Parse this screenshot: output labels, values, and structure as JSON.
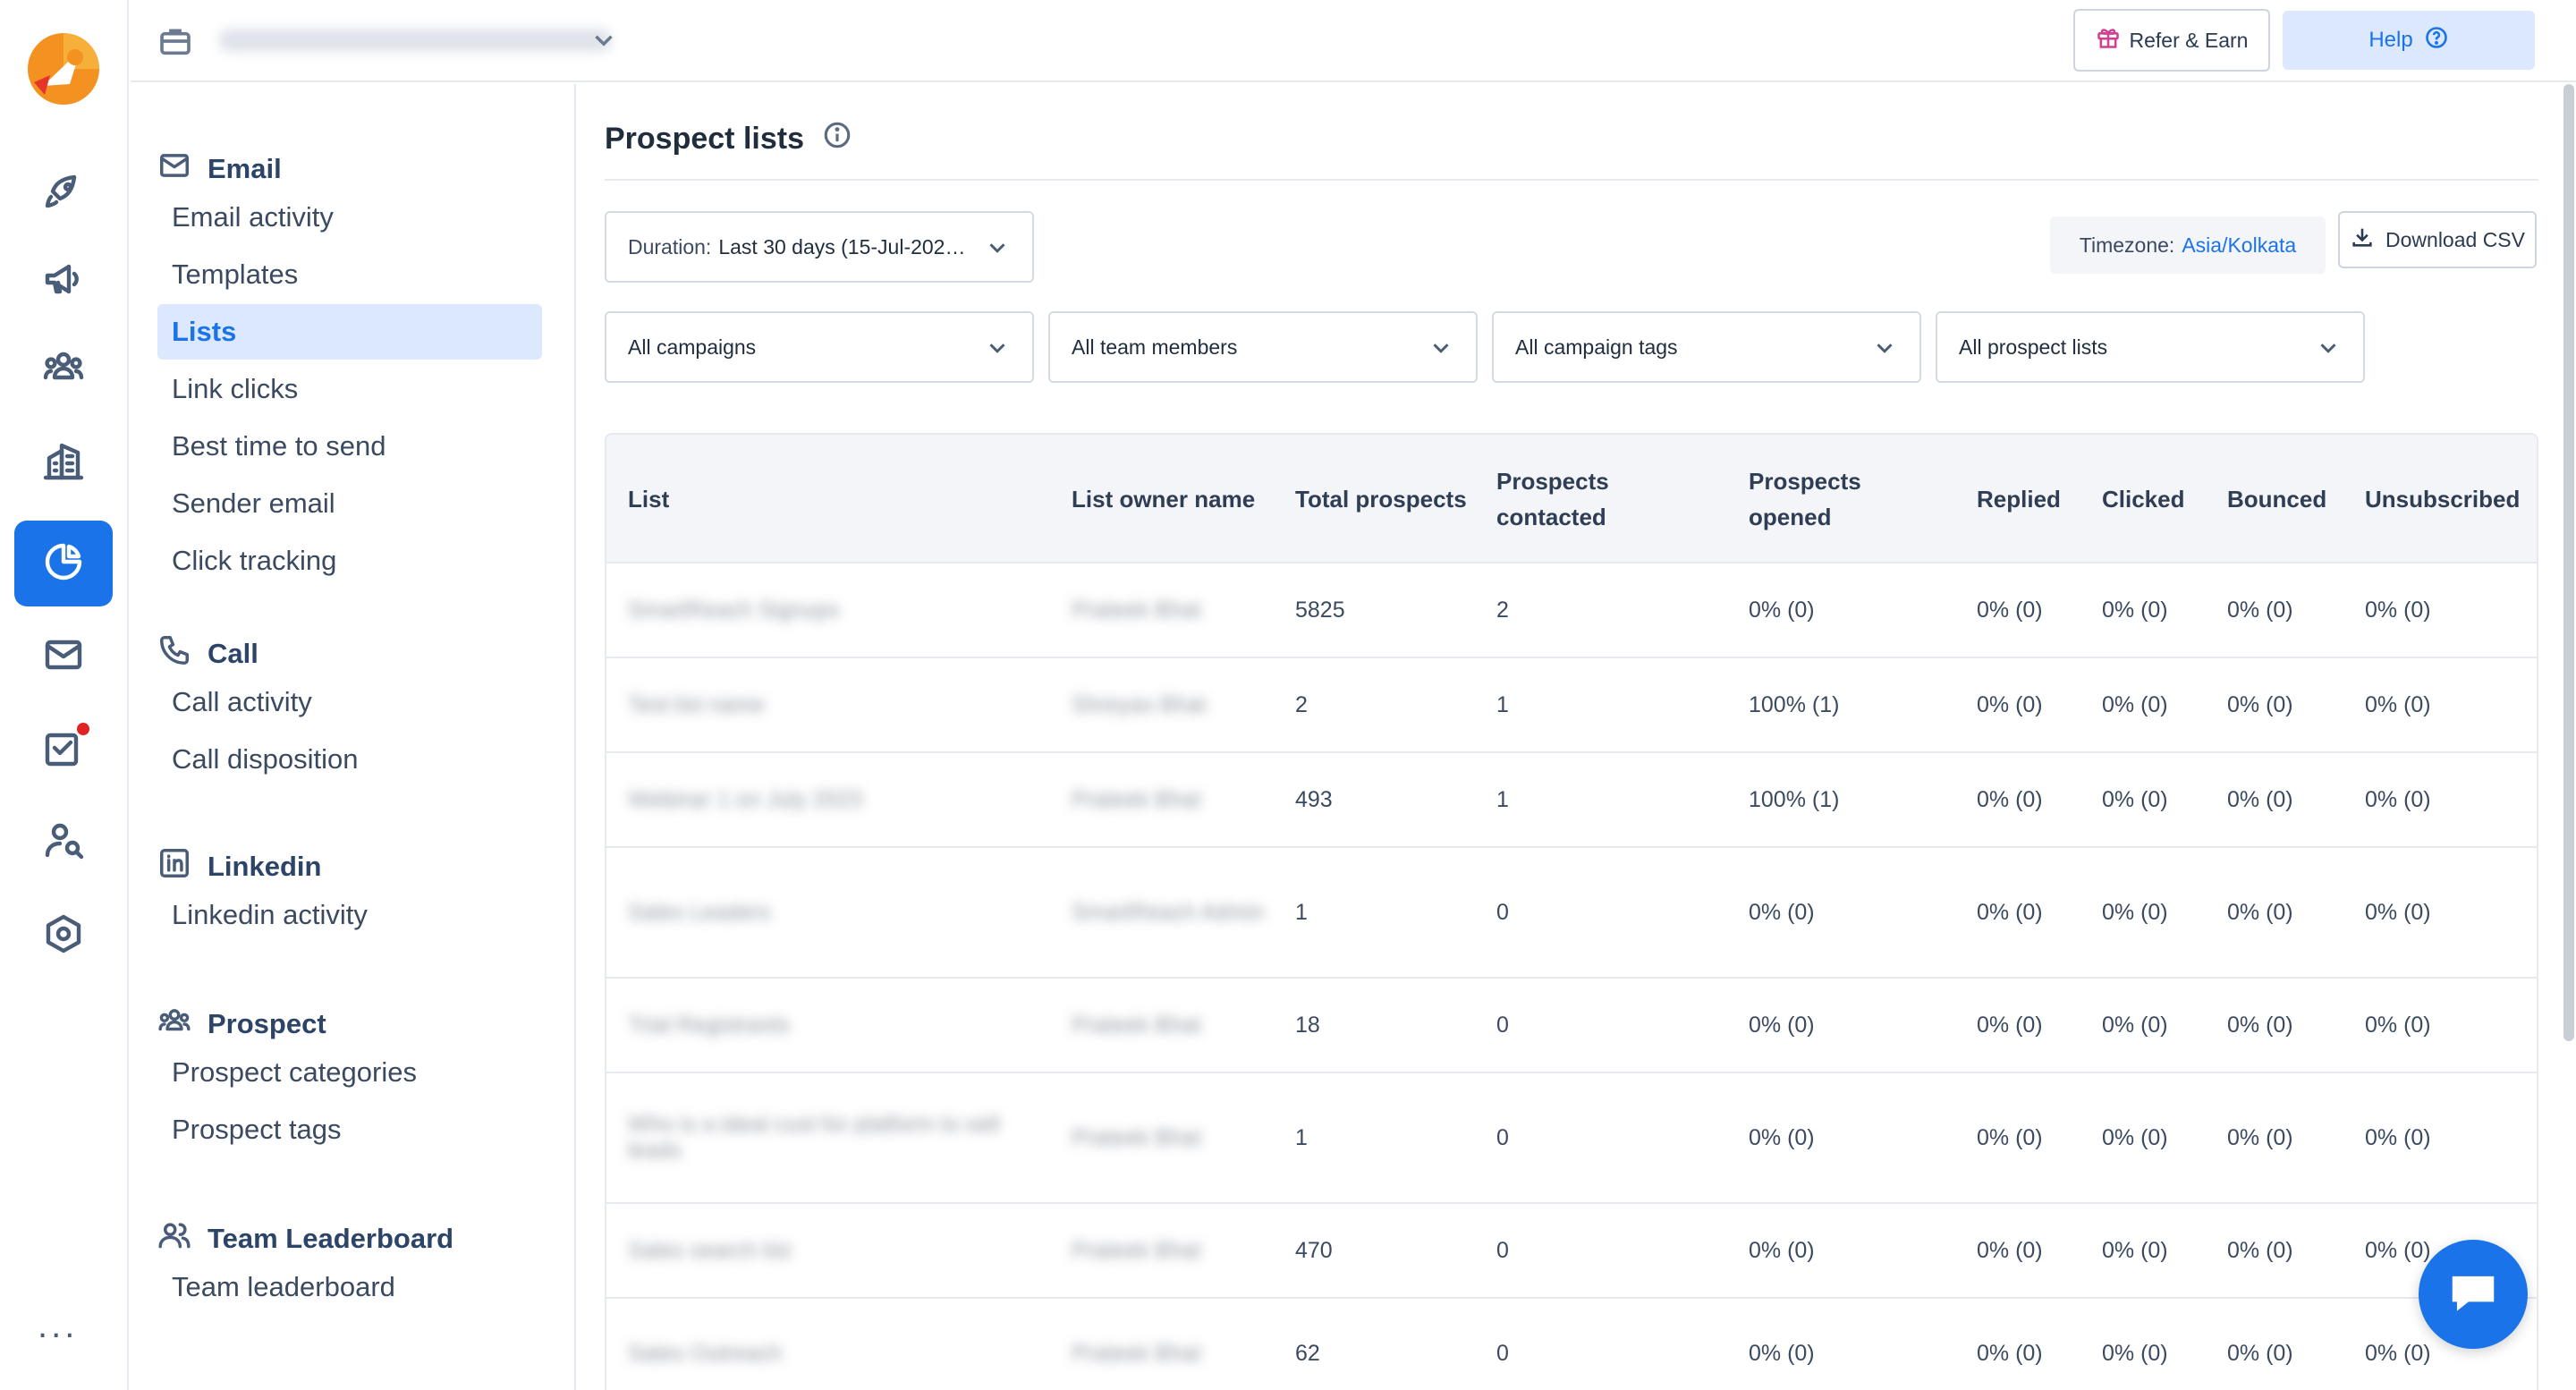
{
  "topbar": {
    "workspace_name": "",
    "refer_label": "Refer & Earn",
    "help_label": "Help"
  },
  "rail": {
    "items": [
      "rocket-icon",
      "megaphone-icon",
      "team-icon",
      "building-icon",
      "reports-icon",
      "mail-icon",
      "task-icon",
      "prospect-search-icon",
      "settings-icon"
    ],
    "active": "reports-icon",
    "more_label": "..."
  },
  "subnav": {
    "email": {
      "title": "Email",
      "items": [
        "Email activity",
        "Templates",
        "Lists",
        "Link clicks",
        "Best time to send",
        "Sender email",
        "Click tracking"
      ],
      "active": "Lists"
    },
    "call": {
      "title": "Call",
      "items": [
        "Call activity",
        "Call disposition"
      ]
    },
    "linkedin": {
      "title": "Linkedin",
      "items": [
        "Linkedin activity"
      ]
    },
    "prospect": {
      "title": "Prospect",
      "items": [
        "Prospect categories",
        "Prospect tags"
      ]
    },
    "team": {
      "title": "Team Leaderboard",
      "items": [
        "Team leaderboard"
      ]
    }
  },
  "page": {
    "title": "Prospect lists",
    "duration_label": "Duration:",
    "duration_value": "Last 30 days (15-Jul-202…",
    "timezone_label": "Timezone:",
    "timezone_value": "Asia/Kolkata",
    "download_label": "Download CSV",
    "filters": [
      "All campaigns",
      "All team members",
      "All campaign tags",
      "All prospect lists"
    ]
  },
  "table": {
    "columns": [
      "List",
      "List owner name",
      "Total prospects",
      "Prospects contacted",
      "Prospects opened",
      "Replied",
      "Clicked",
      "Bounced",
      "Unsubscribed"
    ],
    "rows": [
      {
        "list": "SmartReach Signups",
        "owner": "Prateek Bhat",
        "total": "5825",
        "contacted": "2",
        "opened": "0% (0)",
        "replied": "0% (0)",
        "clicked": "0% (0)",
        "bounced": "0% (0)",
        "unsub": "0% (0)"
      },
      {
        "list": "Test list name",
        "owner": "Shreyas Bhat",
        "total": "2",
        "contacted": "1",
        "opened": "100% (1)",
        "replied": "0% (0)",
        "clicked": "0% (0)",
        "bounced": "0% (0)",
        "unsub": "0% (0)"
      },
      {
        "list": "Webinar 1 on July 2023",
        "owner": "Prateek Bhat",
        "total": "493",
        "contacted": "1",
        "opened": "100% (1)",
        "replied": "0% (0)",
        "clicked": "0% (0)",
        "bounced": "0% (0)",
        "unsub": "0% (0)"
      },
      {
        "list": "Sales Leaders",
        "owner": "SmartReach Admin",
        "total": "1",
        "contacted": "0",
        "opened": "0% (0)",
        "replied": "0% (0)",
        "clicked": "0% (0)",
        "bounced": "0% (0)",
        "unsub": "0% (0)"
      },
      {
        "list": "Trial Registrants",
        "owner": "Prateek Bhat",
        "total": "18",
        "contacted": "0",
        "opened": "0% (0)",
        "replied": "0% (0)",
        "clicked": "0% (0)",
        "bounced": "0% (0)",
        "unsub": "0% (0)"
      },
      {
        "list": "Who is a ideal cust for platform to sell leads",
        "owner": "Prateek Bhat",
        "total": "1",
        "contacted": "0",
        "opened": "0% (0)",
        "replied": "0% (0)",
        "clicked": "0% (0)",
        "bounced": "0% (0)",
        "unsub": "0% (0)"
      },
      {
        "list": "Sales search list",
        "owner": "Prateek Bhat",
        "total": "470",
        "contacted": "0",
        "opened": "0% (0)",
        "replied": "0% (0)",
        "clicked": "0% (0)",
        "bounced": "0% (0)",
        "unsub": "0% (0)"
      },
      {
        "list": "Sales Outreach",
        "owner": "Prateek Bhat",
        "total": "62",
        "contacted": "0",
        "opened": "0% (0)",
        "replied": "0% (0)",
        "clicked": "0% (0)",
        "bounced": "0% (0)",
        "unsub": "0% (0)"
      }
    ]
  },
  "colors": {
    "accent": "#1a73e8",
    "active_bg": "#dbe8fd",
    "header_bg": "#f3f5f8",
    "notification_dot": "#e02424",
    "logo_orange": "#f39221",
    "logo_red": "#e5342a"
  }
}
